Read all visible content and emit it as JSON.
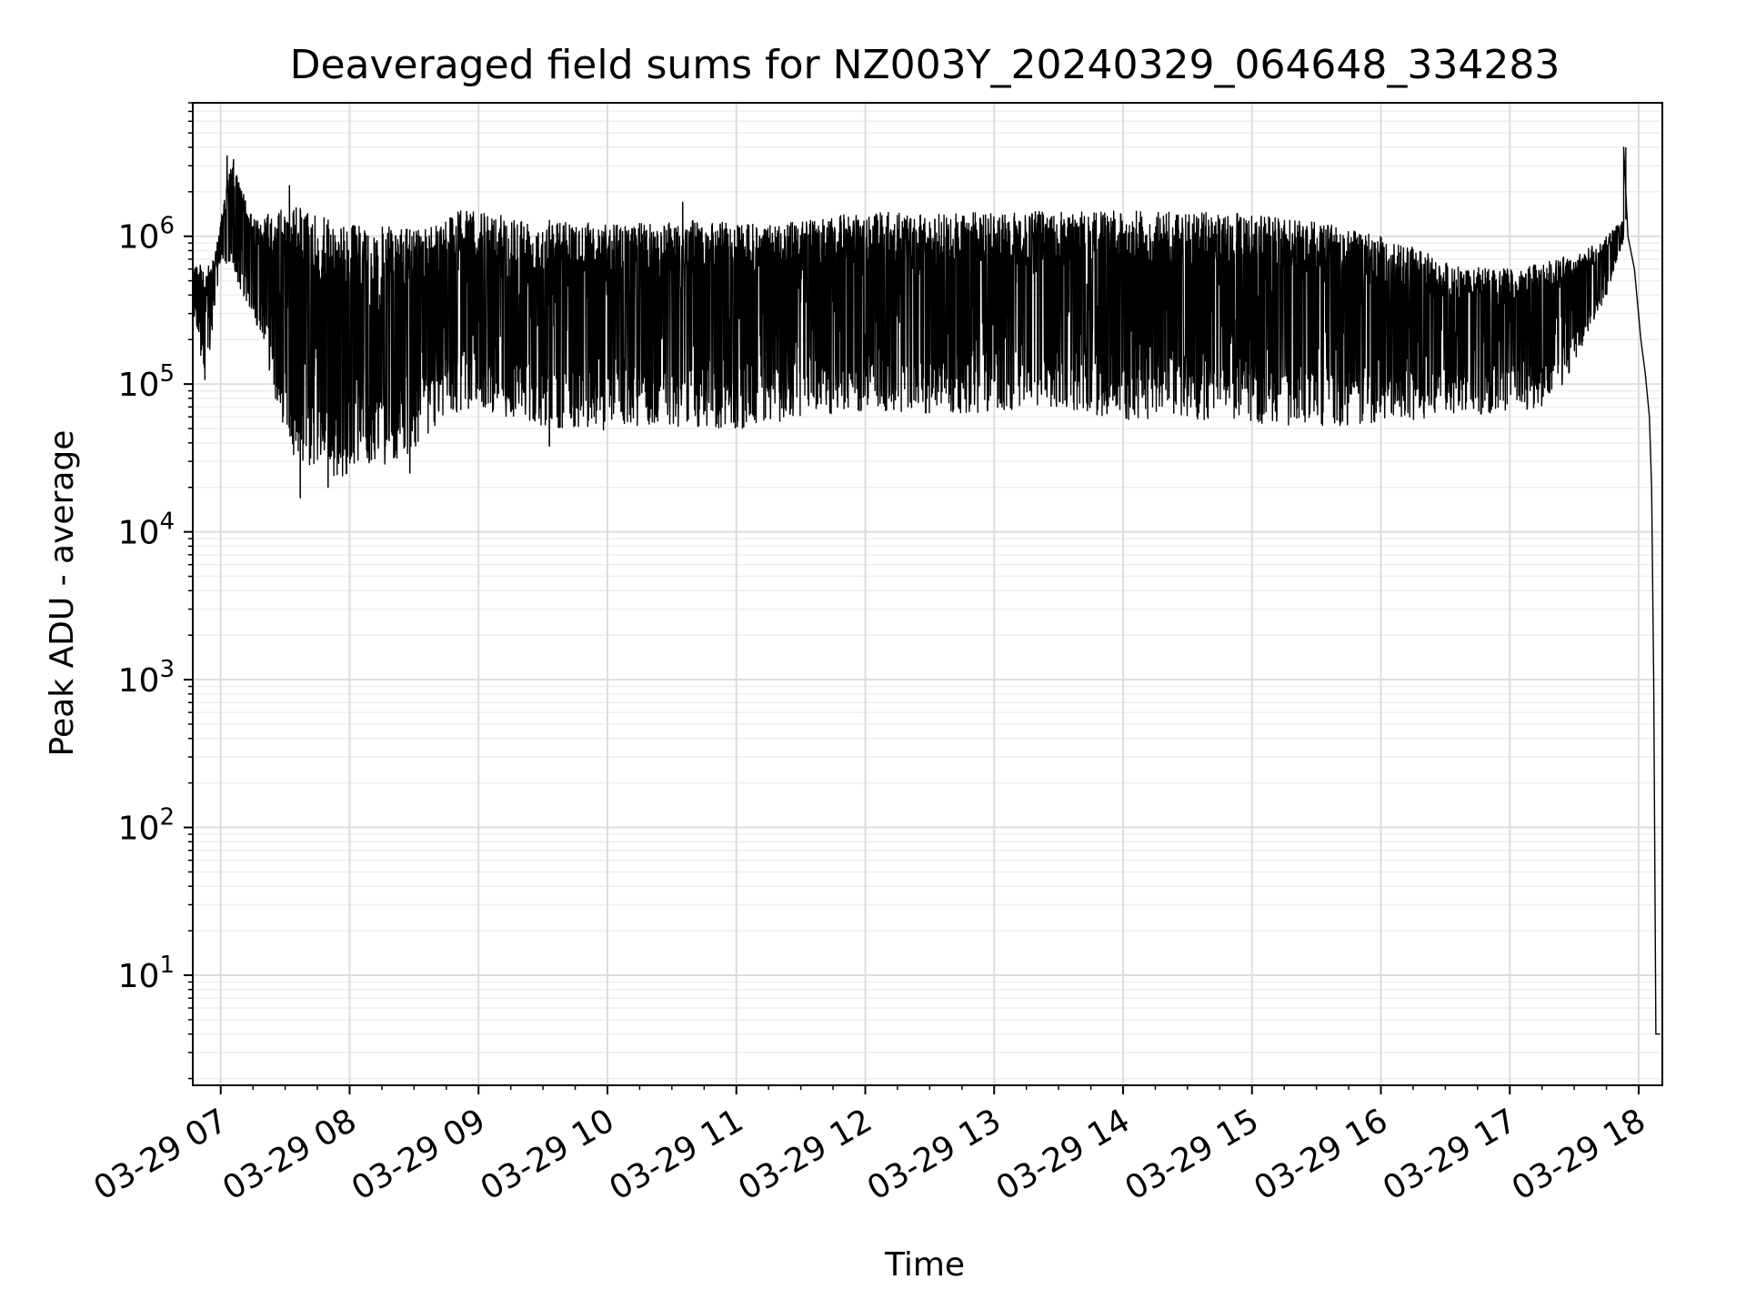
{
  "chart_data": {
    "type": "line",
    "title": "Deaveraged field sums for NZ003Y_20240329_064648_334283",
    "xlabel": "Time",
    "ylabel": "Peak ADU - average",
    "yscale": "log",
    "grid": true,
    "grid_minor": true,
    "legend": "none",
    "line_color": "#000000",
    "xlim": [
      "2024-03-29 06:47",
      "2024-03-29 18:11"
    ],
    "ylim": [
      1.8,
      8000000
    ],
    "x_ticks": [
      {
        "value": "2024-03-29 07:00",
        "label": "03-29 07"
      },
      {
        "value": "2024-03-29 08:00",
        "label": "03-29 08"
      },
      {
        "value": "2024-03-29 09:00",
        "label": "03-29 09"
      },
      {
        "value": "2024-03-29 10:00",
        "label": "03-29 10"
      },
      {
        "value": "2024-03-29 11:00",
        "label": "03-29 11"
      },
      {
        "value": "2024-03-29 12:00",
        "label": "03-29 12"
      },
      {
        "value": "2024-03-29 13:00",
        "label": "03-29 13"
      },
      {
        "value": "2024-03-29 14:00",
        "label": "03-29 14"
      },
      {
        "value": "2024-03-29 15:00",
        "label": "03-29 15"
      },
      {
        "value": "2024-03-29 16:00",
        "label": "03-29 16"
      },
      {
        "value": "2024-03-29 17:00",
        "label": "03-29 17"
      },
      {
        "value": "2024-03-29 18:00",
        "label": "03-29 18"
      }
    ],
    "y_ticks": [
      {
        "value": 10,
        "base": "10",
        "exp": "1"
      },
      {
        "value": 100,
        "base": "10",
        "exp": "2"
      },
      {
        "value": 1000,
        "base": "10",
        "exp": "3"
      },
      {
        "value": 10000,
        "base": "10",
        "exp": "4"
      },
      {
        "value": 100000,
        "base": "10",
        "exp": "5"
      },
      {
        "value": 1000000,
        "base": "10",
        "exp": "6"
      }
    ],
    "series": [
      {
        "envelope_upper": [
          [
            "2024-03-29 06:47",
            700000
          ],
          [
            "2024-03-29 06:50",
            650000
          ],
          [
            "2024-03-29 06:53",
            600000
          ],
          [
            "2024-03-29 06:57",
            700000
          ],
          [
            "2024-03-29 07:00",
            1300000
          ],
          [
            "2024-03-29 07:05",
            3300000
          ],
          [
            "2024-03-29 07:15",
            1300000
          ],
          [
            "2024-03-29 07:25",
            1500000
          ],
          [
            "2024-03-29 07:35",
            1600000
          ],
          [
            "2024-03-29 07:45",
            1400000
          ],
          [
            "2024-03-29 07:55",
            1200000
          ],
          [
            "2024-03-29 08:10",
            1200000
          ],
          [
            "2024-03-29 08:30",
            1100000
          ],
          [
            "2024-03-29 08:50",
            1500000
          ],
          [
            "2024-03-29 09:10",
            1400000
          ],
          [
            "2024-03-29 09:30",
            1300000
          ],
          [
            "2024-03-29 09:50",
            1250000
          ],
          [
            "2024-03-29 10:10",
            1200000
          ],
          [
            "2024-03-29 10:30",
            1300000
          ],
          [
            "2024-03-29 10:50",
            1250000
          ],
          [
            "2024-03-29 11:10",
            1200000
          ],
          [
            "2024-03-29 11:30",
            1250000
          ],
          [
            "2024-03-29 11:50",
            1400000
          ],
          [
            "2024-03-29 12:10",
            1450000
          ],
          [
            "2024-03-29 12:30",
            1400000
          ],
          [
            "2024-03-29 12:50",
            1450000
          ],
          [
            "2024-03-29 13:10",
            1500000
          ],
          [
            "2024-03-29 13:30",
            1500000
          ],
          [
            "2024-03-29 13:50",
            1500000
          ],
          [
            "2024-03-29 14:10",
            1500000
          ],
          [
            "2024-03-29 14:30",
            1450000
          ],
          [
            "2024-03-29 14:50",
            1450000
          ],
          [
            "2024-03-29 15:10",
            1350000
          ],
          [
            "2024-03-29 15:30",
            1250000
          ],
          [
            "2024-03-29 15:50",
            1100000
          ],
          [
            "2024-03-29 16:10",
            900000
          ],
          [
            "2024-03-29 16:30",
            700000
          ],
          [
            "2024-03-29 16:50",
            600000
          ],
          [
            "2024-03-29 17:05",
            600000
          ],
          [
            "2024-03-29 17:20",
            700000
          ],
          [
            "2024-03-29 17:35",
            800000
          ],
          [
            "2024-03-29 17:45",
            1000000
          ],
          [
            "2024-03-29 17:50",
            1200000
          ],
          [
            "2024-03-29 17:53",
            1300000
          ]
        ],
        "envelope_lower": [
          [
            "2024-03-29 06:47",
            300000
          ],
          [
            "2024-03-29 06:50",
            200000
          ],
          [
            "2024-03-29 06:53",
            70000
          ],
          [
            "2024-03-29 06:57",
            300000
          ],
          [
            "2024-03-29 07:00",
            700000
          ],
          [
            "2024-03-29 07:10",
            400000
          ],
          [
            "2024-03-29 07:20",
            200000
          ],
          [
            "2024-03-29 07:25",
            80000
          ],
          [
            "2024-03-29 07:35",
            30000
          ],
          [
            "2024-03-29 07:45",
            25000
          ],
          [
            "2024-03-29 07:55",
            22000
          ],
          [
            "2024-03-29 08:05",
            30000
          ],
          [
            "2024-03-29 08:15",
            28000
          ],
          [
            "2024-03-29 08:30",
            35000
          ],
          [
            "2024-03-29 08:45",
            60000
          ],
          [
            "2024-03-29 09:00",
            70000
          ],
          [
            "2024-03-29 09:20",
            55000
          ],
          [
            "2024-03-29 09:40",
            50000
          ],
          [
            "2024-03-29 10:00",
            48000
          ],
          [
            "2024-03-29 10:30",
            52000
          ],
          [
            "2024-03-29 11:00",
            48000
          ],
          [
            "2024-03-29 11:30",
            60000
          ],
          [
            "2024-03-29 12:00",
            65000
          ],
          [
            "2024-03-29 12:30",
            60000
          ],
          [
            "2024-03-29 13:00",
            65000
          ],
          [
            "2024-03-29 13:30",
            70000
          ],
          [
            "2024-03-29 14:00",
            55000
          ],
          [
            "2024-03-29 14:30",
            58000
          ],
          [
            "2024-03-29 15:00",
            55000
          ],
          [
            "2024-03-29 15:30",
            50000
          ],
          [
            "2024-03-29 16:00",
            55000
          ],
          [
            "2024-03-29 16:30",
            60000
          ],
          [
            "2024-03-29 17:00",
            65000
          ],
          [
            "2024-03-29 17:15",
            70000
          ],
          [
            "2024-03-29 17:25",
            100000
          ],
          [
            "2024-03-29 17:35",
            200000
          ],
          [
            "2024-03-29 17:45",
            400000
          ],
          [
            "2024-03-29 17:50",
            700000
          ],
          [
            "2024-03-29 17:53",
            900000
          ]
        ],
        "spikes": [
          [
            "2024-03-29 07:03",
            3500000
          ],
          [
            "2024-03-29 07:06",
            3300000
          ],
          [
            "2024-03-29 07:32",
            2200000
          ],
          [
            "2024-03-29 07:37",
            17000
          ],
          [
            "2024-03-29 07:50",
            20000
          ],
          [
            "2024-03-29 08:28",
            25000
          ],
          [
            "2024-03-29 09:33",
            38000
          ],
          [
            "2024-03-29 10:35",
            1700000
          ],
          [
            "2024-03-29 17:54",
            4000000
          ]
        ],
        "tail": [
          [
            "2024-03-29 17:53",
            4000000
          ],
          [
            "2024-03-29 17:55",
            1000000
          ],
          [
            "2024-03-29 17:58",
            600000
          ],
          [
            "2024-03-29 18:01",
            200000
          ],
          [
            "2024-03-29 18:03",
            120000
          ],
          [
            "2024-03-29 18:05",
            60000
          ],
          [
            "2024-03-29 18:06",
            20000
          ],
          [
            "2024-03-29 18:07",
            1000
          ],
          [
            "2024-03-29 18:08",
            4
          ],
          [
            "2024-03-29 18:10",
            4
          ]
        ]
      }
    ]
  }
}
